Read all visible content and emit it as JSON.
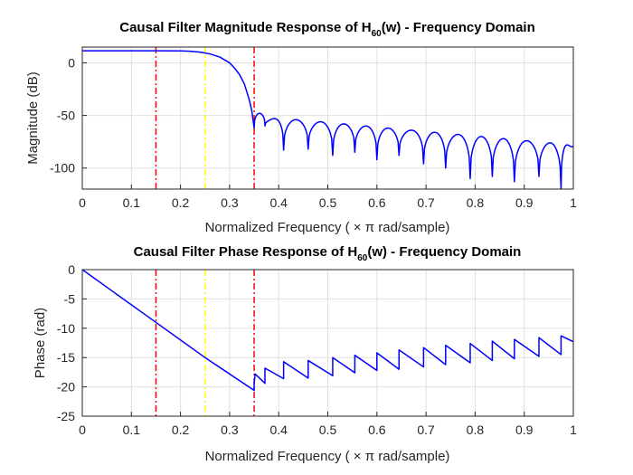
{
  "chart_data": [
    {
      "type": "line",
      "title_main": "Causal Filter Magnitude Response of H",
      "title_sub": "60",
      "title_tail": "(w) - Frequency Domain",
      "xlabel": "Normalized Frequency ( × π rad/sample)",
      "ylabel": "Magnitude (dB)",
      "xlim": [
        0,
        1
      ],
      "ylim": [
        -120,
        15
      ],
      "xticks": [
        0,
        0.1,
        0.2,
        0.3,
        0.4,
        0.5,
        0.6,
        0.7,
        0.8,
        0.9,
        1
      ],
      "xtick_labels": [
        "0",
        "0.1",
        "0.2",
        "0.3",
        "0.4",
        "0.5",
        "0.6",
        "0.7",
        "0.8",
        "0.9",
        "1"
      ],
      "yticks": [
        0,
        -50,
        -100
      ],
      "ytick_labels": [
        "0",
        "-50",
        "-100"
      ],
      "grid": true,
      "series": [
        {
          "color": "#0000ff",
          "x": [
            0,
            0.05,
            0.1,
            0.15,
            0.2,
            0.22,
            0.24,
            0.26,
            0.28,
            0.3,
            0.31,
            0.32,
            0.33,
            0.34,
            0.345,
            0.35
          ],
          "y": [
            11.5,
            11.5,
            11.5,
            11.5,
            11.3,
            11.0,
            10.2,
            8.5,
            5.5,
            0,
            -5,
            -11,
            -20,
            -35,
            -45,
            -62
          ]
        }
      ],
      "lobes": {
        "start": 0.35,
        "nulls": [
          0.35,
          0.372,
          0.41,
          0.46,
          0.51,
          0.555,
          0.6,
          0.645,
          0.695,
          0.74,
          0.79,
          0.835,
          0.88,
          0.93,
          0.975
        ],
        "peaks": [
          -48,
          -53,
          -54,
          -56,
          -58,
          -60,
          -62,
          -64,
          -66,
          -68,
          -70,
          -72,
          -74,
          -76,
          -78,
          -79
        ],
        "null_depths": [
          -62,
          -60,
          -83,
          -82,
          -88,
          -85,
          -92,
          -88,
          -96,
          -100,
          -110,
          -108,
          -113,
          -108,
          -120
        ],
        "end_value": -79
      },
      "vlines": [
        {
          "x": 0.15,
          "color": "#ff0000"
        },
        {
          "x": 0.25,
          "color": "#ffff00"
        },
        {
          "x": 0.35,
          "color": "#ff0000"
        }
      ]
    },
    {
      "type": "line",
      "title_main": "Causal Filter Phase Response of H",
      "title_sub": "60",
      "title_tail": "(w) - Frequency Domain",
      "xlabel": "Normalized Frequency ( × π rad/sample)",
      "ylabel": "Phase (rad)",
      "xlim": [
        0,
        1
      ],
      "ylim": [
        -25,
        0
      ],
      "xticks": [
        0,
        0.1,
        0.2,
        0.3,
        0.4,
        0.5,
        0.6,
        0.7,
        0.8,
        0.9,
        1
      ],
      "xtick_labels": [
        "0",
        "0.1",
        "0.2",
        "0.3",
        "0.4",
        "0.5",
        "0.6",
        "0.7",
        "0.8",
        "0.9",
        "1"
      ],
      "yticks": [
        0,
        -5,
        -10,
        -15,
        -20,
        -25
      ],
      "ytick_labels": [
        "0",
        "-5",
        "-10",
        "-15",
        "-20",
        "-25"
      ],
      "grid": true,
      "series": [
        {
          "color": "#0000ff",
          "x": [
            0,
            0.15,
            0.25,
            0.35,
            0.35,
            0.352,
            0.372,
            0.372,
            0.41,
            0.41,
            0.46,
            0.46,
            0.51,
            0.51,
            0.555,
            0.555,
            0.6,
            0.6,
            0.645,
            0.645,
            0.695,
            0.695,
            0.74,
            0.74,
            0.79,
            0.79,
            0.835,
            0.835,
            0.88,
            0.88,
            0.93,
            0.93,
            0.975,
            0.975,
            1
          ],
          "y": [
            0,
            -9,
            -15,
            -20.6,
            -19.5,
            -17.8,
            -19.4,
            -16.8,
            -18.6,
            -15.7,
            -18.5,
            -15.5,
            -18.1,
            -15.0,
            -17.6,
            -14.6,
            -17.2,
            -14.2,
            -17.0,
            -13.7,
            -16.6,
            -13.3,
            -16.2,
            -12.9,
            -15.9,
            -12.6,
            -15.5,
            -12.2,
            -15.2,
            -11.9,
            -14.8,
            -11.6,
            -14.5,
            -11.3,
            -12.3
          ]
        }
      ],
      "vlines": [
        {
          "x": 0.15,
          "color": "#ff0000"
        },
        {
          "x": 0.25,
          "color": "#ffff00"
        },
        {
          "x": 0.35,
          "color": "#ff0000"
        }
      ]
    }
  ]
}
